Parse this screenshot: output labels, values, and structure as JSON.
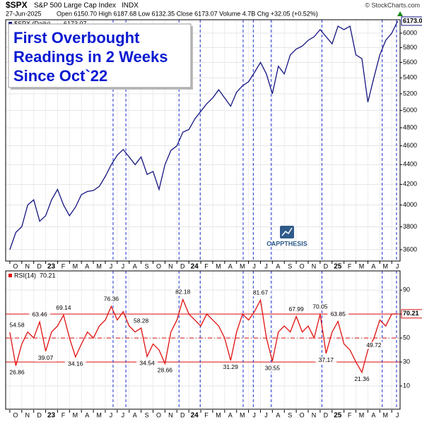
{
  "chart_data": {
    "type": "line",
    "header": {
      "symbol": "$SPX",
      "name": "S&P 500 Large Cap Index",
      "exchange": "INDX",
      "copyright": "© StockCharts.com",
      "date": "27-Jun-2025",
      "quote": "Open 6150.70  High 6187.68  Low 6132.35  Close 6173.07  Volume 4.7B  Chg +32.05 (+0.52%)"
    },
    "title": [
      "First Overbought",
      "Readings in 2 Weeks",
      "Since Oct`22"
    ],
    "logo": "CAPPTHESIS",
    "xlim": [
      -0.7,
      65.4
    ],
    "xticks": [
      {
        "value": 0,
        "label": "O"
      },
      {
        "value": 2,
        "label": "N"
      },
      {
        "value": 4,
        "label": "D"
      },
      {
        "value": 6,
        "label": "23"
      },
      {
        "value": 8,
        "label": "F"
      },
      {
        "value": 10,
        "label": "M"
      },
      {
        "value": 12,
        "label": "A"
      },
      {
        "value": 14,
        "label": "M"
      },
      {
        "value": 16,
        "label": "J"
      },
      {
        "value": 18,
        "label": "J"
      },
      {
        "value": 20,
        "label": "A"
      },
      {
        "value": 22,
        "label": "S"
      },
      {
        "value": 24,
        "label": "O"
      },
      {
        "value": 26,
        "label": "N"
      },
      {
        "value": 28,
        "label": "D"
      },
      {
        "value": 30,
        "label": "24"
      },
      {
        "value": 32,
        "label": "F"
      },
      {
        "value": 34,
        "label": "M"
      },
      {
        "value": 36,
        "label": "A"
      },
      {
        "value": 38,
        "label": "M"
      },
      {
        "value": 40,
        "label": "J"
      },
      {
        "value": 42,
        "label": "J"
      },
      {
        "value": 44,
        "label": "A"
      },
      {
        "value": 46,
        "label": "S"
      },
      {
        "value": 48,
        "label": "O"
      },
      {
        "value": 50,
        "label": "N"
      },
      {
        "value": 52,
        "label": "D"
      },
      {
        "value": 54,
        "label": "25"
      },
      {
        "value": 56,
        "label": "F"
      },
      {
        "value": 58,
        "label": "M"
      },
      {
        "value": 60,
        "label": "A"
      },
      {
        "value": 62,
        "label": "M"
      },
      {
        "value": 64,
        "label": "J"
      }
    ],
    "markers": [
      17.3,
      19.45,
      28.35,
      31.9,
      39.1,
      40.8,
      43.8,
      52.3,
      62.4,
      64.8
    ],
    "marker_color": "#1a2fd0",
    "price": {
      "legend": "$SPX (Daily)",
      "color": "#141480",
      "log": true,
      "ylim": [
        3505,
        6193
      ],
      "yticks": [
        3600,
        3800,
        4000,
        4200,
        4400,
        4600,
        4800,
        5000,
        5200,
        5400,
        5600,
        5800,
        6000
      ],
      "values": [
        3600,
        3750,
        3800,
        4000,
        4050,
        3850,
        3900,
        4050,
        4150,
        4000,
        3900,
        3980,
        4100,
        4130,
        4140,
        4180,
        4280,
        4400,
        4500,
        4560,
        4480,
        4400,
        4480,
        4300,
        4330,
        4150,
        4400,
        4550,
        4600,
        4750,
        4780,
        4900,
        4990,
        5080,
        5150,
        5250,
        5150,
        5050,
        5220,
        5300,
        5350,
        5470,
        5600,
        5450,
        5200,
        5550,
        5450,
        5700,
        5780,
        5820,
        5900,
        5950,
        6050,
        5950,
        5850,
        6100,
        6050,
        6100,
        5700,
        5650,
        5100,
        5400,
        5700,
        5900,
        6000,
        6173.07
      ]
    },
    "rsi": {
      "legend": "RSI(14)",
      "color": "#e01010",
      "ylim": [
        -9.4,
        106
      ],
      "yticks": [
        10,
        30,
        50,
        70,
        90
      ],
      "levels": [
        30,
        70
      ],
      "midline": 50,
      "values": [
        54.58,
        26.86,
        45,
        55,
        50,
        63.46,
        39.07,
        55,
        60,
        69.14,
        50,
        34.16,
        45,
        55,
        50,
        60,
        65,
        76.36,
        65,
        72,
        60,
        55,
        58.28,
        34.54,
        45,
        40,
        28.66,
        55,
        65,
        82.18,
        70,
        65,
        60,
        70,
        65,
        60,
        50,
        31.29,
        55,
        70,
        65,
        72,
        81.67,
        50,
        30.55,
        55,
        60,
        55,
        67.99,
        55,
        60,
        50,
        70.05,
        37.17,
        55,
        63.85,
        45,
        40,
        30,
        21.36,
        40,
        49.72,
        65,
        60,
        70,
        70.21
      ],
      "labeled": [
        0,
        1,
        5,
        6,
        9,
        11,
        17,
        22,
        23,
        26,
        29,
        37,
        42,
        44,
        48,
        52,
        53,
        55,
        59,
        61
      ]
    }
  }
}
